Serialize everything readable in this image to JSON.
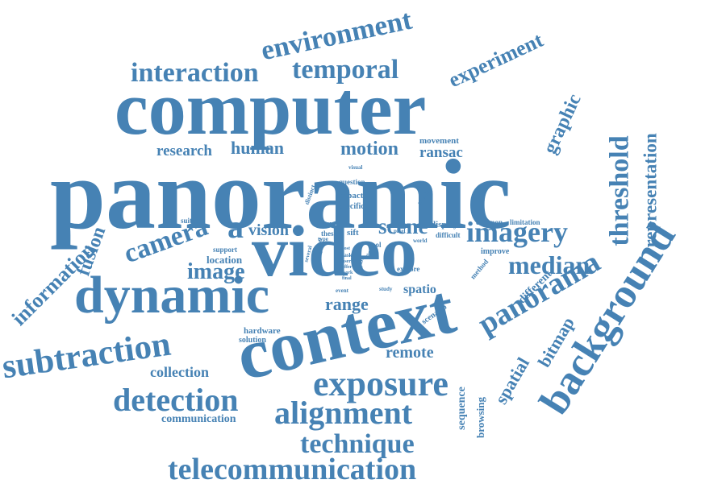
{
  "cloud": {
    "color": "#4682b4",
    "words": {
      "panoramic": "panoramic",
      "computer": "computer",
      "video": "video",
      "context": "context",
      "dynamic": "dynamic",
      "background": "background",
      "exposure": "exposure",
      "alignment": "alignment",
      "subtraction": "subtraction",
      "detection": "detection",
      "telecommunication": "telecommunication",
      "technique": "technique",
      "interaction": "interaction",
      "temporal": "temporal",
      "environment": "environment",
      "panorama": "panorama",
      "imagery": "imagery",
      "camera": "camera",
      "median": "median",
      "threshold": "threshold",
      "information": "information",
      "experiment": "experiment",
      "image": "image",
      "motion": "motion",
      "human": "human",
      "research": "research",
      "representation": "representation",
      "graphic": "graphic",
      "scene": "scene",
      "vision": "vision",
      "fusion": "fusion",
      "spatial": "spatial",
      "bitmap": "bitmap",
      "range": "range",
      "remote": "remote",
      "collection": "collection",
      "communication": "communication",
      "ransac": "ransac",
      "location": "location",
      "spatio": "spatio",
      "sequence": "sequence",
      "browsing": "browsing",
      "different": "different",
      "movement": "movement",
      "a": "a",
      "hardware": "hardware",
      "solution": "solution",
      "scenario": "scenario",
      "question": "question",
      "impact": "impact",
      "specific": "specific",
      "suitable": "suitable",
      "support": "support",
      "virtual": "virtual",
      "thesis": "thesis",
      "sift": "sift",
      "display": "display",
      "difficult": "difficult",
      "common": "common",
      "limitation": "limitation",
      "improve": "improve",
      "explore": "explore",
      "method": "method",
      "tool": "tool",
      "distinct": "distinct",
      "quality": "quality",
      "visual": "visual",
      "pixel": "pixel",
      "world": "world",
      "study": "study",
      "event": "event",
      "novel": "novel",
      "several": "several",
      "reason": "reason",
      "type": "type",
      "cost": "cost",
      "task": "task",
      "user": "user",
      "offer": "offer",
      "work": "work",
      "final": "final",
      "ghost": "ghost",
      "film": "film"
    }
  }
}
